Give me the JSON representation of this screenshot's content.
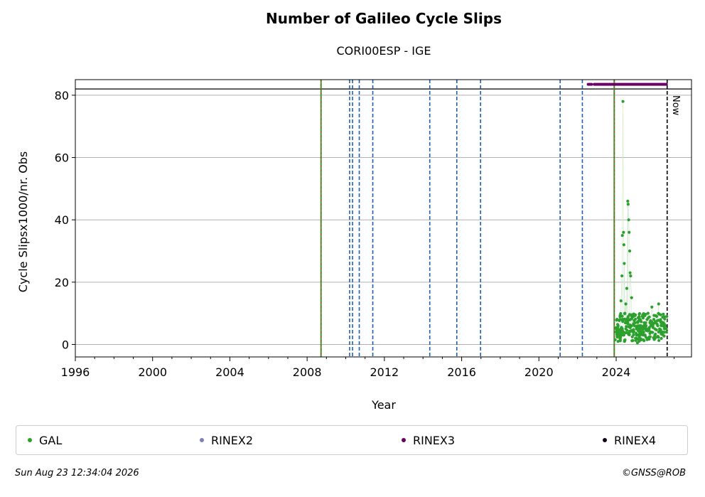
{
  "chart_data": {
    "type": "scatter",
    "title": "Number of Galileo Cycle Slips",
    "subtitle": "CORI00ESP - IGE",
    "xlabel": "Year",
    "ylabel": "Cycle Slipsx1000/nr. Obs",
    "xlim": [
      1996,
      2027.9
    ],
    "ylim": [
      -4,
      85
    ],
    "xticks": [
      1996,
      2000,
      2004,
      2008,
      2012,
      2016,
      2020,
      2024
    ],
    "yticks": [
      0,
      20,
      40,
      60,
      80
    ],
    "grid": "horizontal",
    "hline": 82,
    "now_label": "Now",
    "now_x": 2026.64,
    "event_lines_solid": [
      2008.72,
      2023.9
    ],
    "event_lines_dashed": [
      2010.2,
      2010.35,
      2010.7,
      2011.4,
      2014.35,
      2015.75,
      2016.98,
      2021.1,
      2022.25
    ],
    "series": [
      {
        "name": "GAL",
        "color": "#2ca02c",
        "points": [
          [
            2023.95,
            1.5
          ],
          [
            2024.0,
            4.0
          ],
          [
            2024.05,
            2.5
          ],
          [
            2024.1,
            6.0
          ],
          [
            2024.15,
            3.0
          ],
          [
            2024.2,
            8.0
          ],
          [
            2024.25,
            14.0
          ],
          [
            2024.3,
            22.0
          ],
          [
            2024.32,
            35.0
          ],
          [
            2024.35,
            78.0
          ],
          [
            2024.38,
            36.0
          ],
          [
            2024.4,
            32.0
          ],
          [
            2024.42,
            26.0
          ],
          [
            2024.45,
            10.0
          ],
          [
            2024.5,
            13.0
          ],
          [
            2024.55,
            18.0
          ],
          [
            2024.6,
            46.0
          ],
          [
            2024.62,
            45.0
          ],
          [
            2024.65,
            40.0
          ],
          [
            2024.67,
            36.0
          ],
          [
            2024.7,
            30.0
          ],
          [
            2024.72,
            23.0
          ],
          [
            2024.75,
            22.0
          ],
          [
            2024.8,
            15.0
          ],
          [
            2024.85,
            9.0
          ],
          [
            2024.9,
            4.0
          ],
          [
            2024.95,
            6.0
          ],
          [
            2025.0,
            7.0
          ],
          [
            2025.05,
            5.0
          ],
          [
            2025.1,
            0.5
          ],
          [
            2025.15,
            3.0
          ],
          [
            2025.2,
            6.0
          ],
          [
            2025.25,
            8.0
          ],
          [
            2025.3,
            4.0
          ],
          [
            2025.35,
            9.0
          ],
          [
            2025.4,
            5.0
          ],
          [
            2025.45,
            7.0
          ],
          [
            2025.5,
            3.0
          ],
          [
            2025.55,
            6.0
          ],
          [
            2025.6,
            8.0
          ],
          [
            2025.65,
            10.0
          ],
          [
            2025.7,
            5.0
          ],
          [
            2025.75,
            7.0
          ],
          [
            2025.8,
            4.0
          ],
          [
            2025.85,
            12.0
          ],
          [
            2025.9,
            6.0
          ],
          [
            2025.95,
            8.0
          ],
          [
            2026.0,
            5.0
          ],
          [
            2026.05,
            7.0
          ],
          [
            2026.1,
            9.0
          ],
          [
            2026.15,
            6.0
          ],
          [
            2026.2,
            13.0
          ],
          [
            2026.25,
            5.0
          ],
          [
            2026.3,
            8.0
          ],
          [
            2026.35,
            6.0
          ],
          [
            2026.4,
            4.0
          ],
          [
            2026.45,
            7.0
          ],
          [
            2026.5,
            5.0
          ],
          [
            2026.55,
            6.0
          ],
          [
            2026.6,
            4.0
          ],
          [
            2026.62,
            9.0
          ],
          [
            2024.1,
            1.0
          ],
          [
            2024.2,
            2.0
          ],
          [
            2024.4,
            3.0
          ],
          [
            2024.5,
            5.0
          ],
          [
            2024.6,
            7.0
          ],
          [
            2024.7,
            4.0
          ],
          [
            2024.8,
            6.0
          ],
          [
            2025.0,
            2.0
          ],
          [
            2025.2,
            4.0
          ],
          [
            2025.4,
            3.0
          ],
          [
            2025.6,
            5.0
          ],
          [
            2025.8,
            6.0
          ],
          [
            2026.0,
            3.0
          ],
          [
            2026.2,
            4.0
          ],
          [
            2026.4,
            6.0
          ],
          [
            2026.6,
            5.0
          ],
          [
            2024.3,
            5.0
          ],
          [
            2024.55,
            8.0
          ],
          [
            2024.9,
            9.0
          ]
        ]
      },
      {
        "name": "RINEX2",
        "color": "#8080c0",
        "points": []
      },
      {
        "name": "RINEX3",
        "color": "#6a0066",
        "band_y": 83.5,
        "x_start": 2022.55,
        "x_end": 2026.62
      },
      {
        "name": "RINEX4",
        "color": "#1a0020",
        "points": []
      }
    ]
  },
  "footer": {
    "timestamp": "Sun Aug 23 12:34:04 2026",
    "credit": "©GNSS@ROB"
  }
}
